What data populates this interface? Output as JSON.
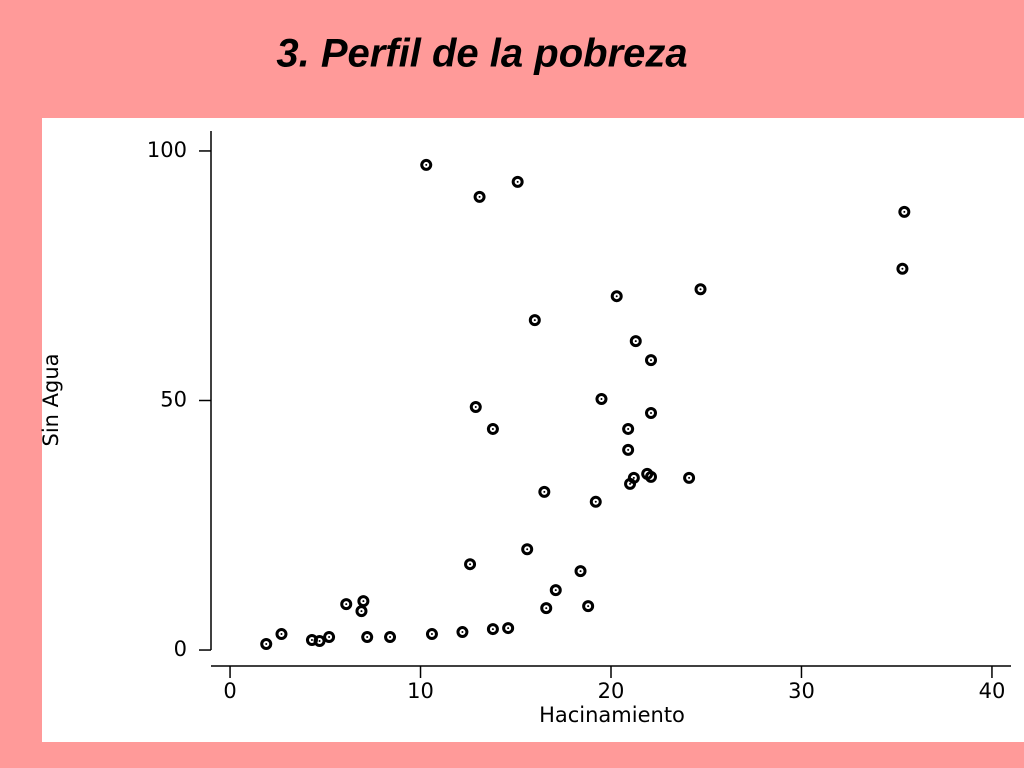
{
  "chart_data": {
    "type": "scatter",
    "title": "3.  Perfil de la pobreza",
    "x_label": "Hacinamiento",
    "y_label": "Sin Agua",
    "x": [
      1.9,
      2.7,
      4.3,
      4.7,
      5.2,
      6.1,
      6.9,
      7.0,
      7.2,
      8.4,
      10.3,
      10.6,
      12.2,
      12.6,
      12.9,
      13.1,
      13.8,
      13.8,
      14.6,
      15.1,
      15.6,
      16.0,
      16.5,
      16.6,
      17.1,
      18.4,
      18.8,
      19.2,
      19.5,
      20.3,
      20.9,
      20.9,
      21.0,
      21.2,
      21.3,
      21.9,
      22.1,
      22.1,
      22.1,
      24.1,
      24.7,
      35.3,
      35.4
    ],
    "y": [
      1.2,
      3.2,
      2.0,
      1.8,
      2.6,
      9.2,
      7.8,
      9.8,
      2.6,
      2.6,
      97.2,
      3.2,
      3.6,
      17.2,
      48.7,
      90.8,
      4.2,
      44.3,
      4.4,
      93.8,
      20.2,
      66.1,
      31.7,
      8.4,
      12.0,
      15.8,
      8.8,
      29.7,
      50.3,
      70.9,
      44.3,
      40.1,
      33.3,
      34.5,
      61.9,
      35.3,
      58.1,
      47.5,
      34.7,
      34.5,
      72.3,
      76.4,
      87.8
    ],
    "color": "#000000",
    "xlim": [
      -1,
      41
    ],
    "ylim": [
      -3,
      104
    ],
    "xticks": [
      0,
      10,
      20,
      30,
      40
    ],
    "yticks": [
      0,
      50,
      100
    ]
  }
}
